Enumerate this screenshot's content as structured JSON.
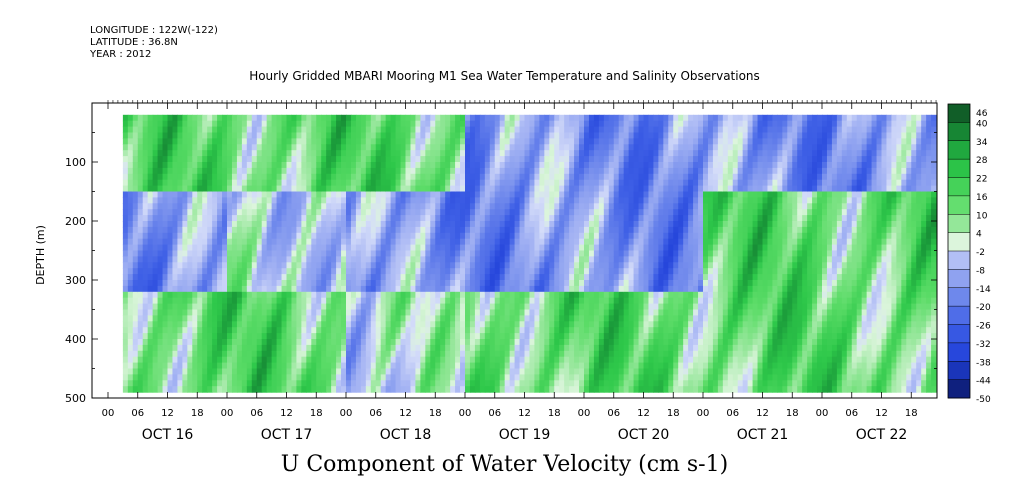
{
  "header": {
    "longitude": "LONGITUDE : 122W(-122)",
    "latitude": "LATITUDE : 36.8N",
    "year": "YEAR : 2012"
  },
  "chart_data": {
    "type": "heatmap",
    "title": "Hourly Gridded MBARI Mooring M1 Sea Water Temperature and Salinity Observations",
    "xlabel": "U Component of Water Velocity (cm s-1)",
    "ylabel": "DEPTH (m)",
    "x_axis": {
      "unit": "hour",
      "hour_tick_labels": [
        "00",
        "06",
        "12",
        "18"
      ],
      "days": [
        "OCT 16",
        "OCT 17",
        "OCT 18",
        "OCT 19",
        "OCT 20",
        "OCT 21",
        "OCT 22"
      ],
      "data_start": "OCT 16 03:00",
      "data_end": "OCT 22 23:00"
    },
    "y_axis": {
      "ticks": [
        100,
        200,
        300,
        400,
        500
      ],
      "ylim": [
        500,
        0
      ],
      "data_range_m": [
        20,
        485
      ],
      "inverted": true
    },
    "colorbar": {
      "levels": [
        46,
        40,
        34,
        28,
        22,
        16,
        10,
        4,
        -2,
        -8,
        -14,
        -20,
        -26,
        -32,
        -38,
        -44,
        -50
      ],
      "low_color": "#0a1560",
      "mid_color": "#e4ecfa",
      "high_color": "#0e4a22"
    },
    "field_pattern": {
      "note_units": "cm s-1",
      "day_phases": [
        {
          "day": "OCT 16",
          "surface": "positive",
          "mid": "negative",
          "deep": "positive"
        },
        {
          "day": "OCT 17",
          "surface": "positive",
          "mid": "mixed",
          "deep": "positive"
        },
        {
          "day": "OCT 18",
          "surface": "positive",
          "mid": "negative",
          "deep": "mixed"
        },
        {
          "day": "OCT 19",
          "surface": "negative",
          "mid": "negative",
          "deep": "positive"
        },
        {
          "day": "OCT 20",
          "surface": "negative",
          "mid": "negative",
          "deep": "positive"
        },
        {
          "day": "OCT 21",
          "surface": "negative",
          "mid": "positive",
          "deep": "positive"
        },
        {
          "day": "OCT 22",
          "surface": "negative",
          "mid": "positive",
          "deep": "positive"
        }
      ]
    }
  }
}
